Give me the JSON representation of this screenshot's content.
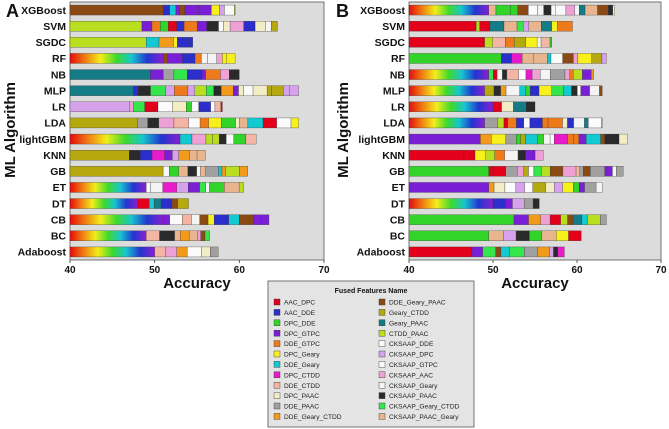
{
  "chart_data": [
    {
      "panel": "A",
      "type": "bar",
      "orientation": "horizontal",
      "stacked": true,
      "xlabel": "Accuracy",
      "ylabel": "ML Algorithm",
      "xlim": [
        40,
        70
      ],
      "xticks": [
        "40",
        "50",
        "60",
        "70"
      ],
      "categories": [
        "XGBoost",
        "SVM",
        "SGDC",
        "RF",
        "NB",
        "MLP",
        "LR",
        "LDA",
        "lightGBM",
        "KNN",
        "GB",
        "ET",
        "DT",
        "CB",
        "BC",
        "Adaboost"
      ],
      "totals": [
        59.5,
        64.5,
        54.5,
        59.5,
        60.0,
        67.0,
        58.0,
        67.0,
        62.0,
        56.0,
        61.0,
        60.5,
        54.0,
        63.5,
        56.5,
        57.5
      ],
      "first_segment": [
        {
          "feature": "DDE_Geary_PAAC",
          "end": 51.0
        },
        {
          "feature": "CTDD_PAAC",
          "end": 48.5
        },
        {
          "feature": "CTDD_PAAC",
          "end": 49.0
        },
        {
          "feature": "rainbow",
          "end": 51.0
        },
        {
          "feature": "Geary_PAAC",
          "end": 49.5
        },
        {
          "feature": "Geary_PAAC",
          "end": 47.5
        },
        {
          "feature": "CKSAAP_DPC",
          "end": 47.0
        },
        {
          "feature": "Geary_CTDD",
          "end": 48.0
        },
        {
          "feature": "rainbow",
          "end": 53.0
        },
        {
          "feature": "Geary_CTDD",
          "end": 47.0
        },
        {
          "feature": "Geary_CTDD",
          "end": 51.0
        },
        {
          "feature": "rainbow",
          "end": 49.0
        },
        {
          "feature": "rainbow",
          "end": 48.0
        },
        {
          "feature": "rainbow",
          "end": 51.0
        },
        {
          "feature": "rainbow",
          "end": 49.0
        },
        {
          "feature": "rainbow",
          "end": 50.0
        }
      ]
    },
    {
      "panel": "B",
      "type": "bar",
      "orientation": "horizontal",
      "stacked": true,
      "xlabel": "Accuracy",
      "ylabel": "ML Algorithm",
      "xlim": [
        40,
        70
      ],
      "xticks": [
        "40",
        "50",
        "60",
        "70"
      ],
      "categories": [
        "XGBoost",
        "SVM",
        "SGDC",
        "RF",
        "NB",
        "MLP",
        "LR",
        "LDA",
        "lightGBM",
        "KNN",
        "GB",
        "ET",
        "DT",
        "CB",
        "BC",
        "Adaboost"
      ],
      "totals": [
        64.5,
        59.5,
        57.0,
        63.5,
        62.0,
        63.0,
        55.0,
        63.0,
        66.0,
        56.0,
        65.5,
        63.0,
        55.5,
        63.5,
        60.5,
        58.5
      ],
      "first_segment": [
        {
          "feature": "rainbow",
          "end": 49.5
        },
        {
          "feature": "AAC_DPC",
          "end": 48.0
        },
        {
          "feature": "AAC_DPC",
          "end": 49.0
        },
        {
          "feature": "DPC_DDE",
          "end": 51.0
        },
        {
          "feature": "rainbow",
          "end": 49.5
        },
        {
          "feature": "rainbow",
          "end": 49.0
        },
        {
          "feature": "rainbow",
          "end": 50.0
        },
        {
          "feature": "rainbow",
          "end": 49.0
        },
        {
          "feature": "DPC_GTPC",
          "end": 48.5
        },
        {
          "feature": "AAC_DPC",
          "end": 46.5
        },
        {
          "feature": "DPC_DDE",
          "end": 49.5
        },
        {
          "feature": "DPC_GTPC",
          "end": 49.5
        },
        {
          "feature": "rainbow",
          "end": 50.0
        },
        {
          "feature": "DPC_DDE",
          "end": 52.5
        },
        {
          "feature": "DPC_DDE",
          "end": 49.5
        },
        {
          "feature": "AAC_DPC",
          "end": 47.5
        }
      ]
    }
  ],
  "legend": {
    "title": "Fused Features Name",
    "items": [
      {
        "label": "AAC_DPC",
        "color": "#e3001b"
      },
      {
        "label": "AAC_DDE",
        "color": "#2c2ecb"
      },
      {
        "label": "DPC_DDE",
        "color": "#33d42a"
      },
      {
        "label": "DPC_GTPC",
        "color": "#7b1fd6"
      },
      {
        "label": "DDE_GTPC",
        "color": "#ef7a1c"
      },
      {
        "label": "DPC_Geary",
        "color": "#f7f01c"
      },
      {
        "label": "DDE_Geary",
        "color": "#13c9d2"
      },
      {
        "label": "DPC_CTDD",
        "color": "#e81ac9"
      },
      {
        "label": "DDE_CTDD",
        "color": "#f5b5a4"
      },
      {
        "label": "DPC_PAAC",
        "color": "#f2edc4"
      },
      {
        "label": "DDE_PAAC",
        "color": "#a0a0a0"
      },
      {
        "label": "DDE_Geary_CTDD",
        "color": "#f29a1a"
      },
      {
        "label": "DDE_Geary_PAAC",
        "color": "#8b4a14"
      },
      {
        "label": "Geary_CTDD",
        "color": "#b6a80f"
      },
      {
        "label": "Geary_PAAC",
        "color": "#137c86"
      },
      {
        "label": "CTDD_PAAC",
        "color": "#b9de20"
      },
      {
        "label": "CKSAAP_DDE",
        "color": "#fbfbfb"
      },
      {
        "label": "CKSAAP_DPC",
        "color": "#d6a2ec"
      },
      {
        "label": "CKSAAP_GTPC",
        "color": "#f9f9f9"
      },
      {
        "label": "CKSAAP_AAC",
        "color": "#efa1d6"
      },
      {
        "label": "CKSAAP_Geary",
        "color": "#f4f4f4"
      },
      {
        "label": "CKSAAP_PAAC",
        "color": "#2a2a2a"
      },
      {
        "label": "CKSAAP_Geary_CTDD",
        "color": "#33e64a"
      },
      {
        "label": "CKSAAP_PAAC_Geary",
        "color": "#e9b58f"
      }
    ]
  }
}
